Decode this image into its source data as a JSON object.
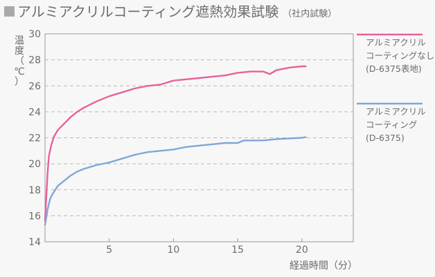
{
  "chart_data": {
    "type": "line",
    "title": "アルミアクリルコーティング遮熱効果試験",
    "subtitle": "（社内試験）",
    "ylabel": [
      "温",
      "度",
      "（",
      "℃",
      "）"
    ],
    "xlabel": "経過時間（分）",
    "xlim": [
      0,
      24
    ],
    "ylim": [
      14,
      30
    ],
    "xticks": [
      5,
      10,
      15,
      20
    ],
    "yticks": [
      14,
      16,
      18,
      20,
      22,
      24,
      26,
      28,
      30
    ],
    "grid": "horizontal dashed",
    "legend_position": "right",
    "series": [
      {
        "name": "アルミアクリルコーティングなし(D-6375表地)",
        "legend_lines": [
          "アルミアクリル",
          "コーティングなし",
          "(D-6375表地)"
        ],
        "color": "#e8609a",
        "x": [
          0,
          0.1,
          0.2,
          0.3,
          0.5,
          0.7,
          1,
          1.5,
          2,
          2.5,
          3,
          4,
          5,
          6,
          7,
          8,
          9,
          10,
          11,
          12,
          13,
          14,
          15,
          16,
          17,
          17.5,
          18,
          19,
          20,
          20.3
        ],
        "y": [
          15.6,
          17.5,
          19.3,
          20.6,
          21.5,
          22.1,
          22.6,
          23.1,
          23.6,
          24.0,
          24.3,
          24.8,
          25.2,
          25.5,
          25.8,
          26.0,
          26.1,
          26.4,
          26.5,
          26.6,
          26.7,
          26.8,
          27.0,
          27.1,
          27.1,
          26.9,
          27.2,
          27.4,
          27.5,
          27.5
        ]
      },
      {
        "name": "アルミアクリルコーティング(D-6375)",
        "legend_lines": [
          "アルミアクリル",
          "コーティング",
          "(D-6375)"
        ],
        "color": "#7fa6d8",
        "x": [
          0,
          0.1,
          0.2,
          0.4,
          0.6,
          0.8,
          1,
          1.5,
          2,
          2.5,
          3,
          4,
          5,
          6,
          7,
          8,
          9,
          10,
          11,
          12,
          13,
          14,
          15,
          15.5,
          16,
          17,
          18,
          19,
          20,
          20.3
        ],
        "y": [
          15.3,
          15.9,
          16.5,
          17.3,
          17.7,
          18.0,
          18.3,
          18.7,
          19.1,
          19.4,
          19.6,
          19.9,
          20.1,
          20.4,
          20.7,
          20.9,
          21.0,
          21.1,
          21.3,
          21.4,
          21.5,
          21.6,
          21.6,
          21.8,
          21.8,
          21.8,
          21.9,
          21.95,
          22.0,
          22.05
        ]
      }
    ]
  }
}
